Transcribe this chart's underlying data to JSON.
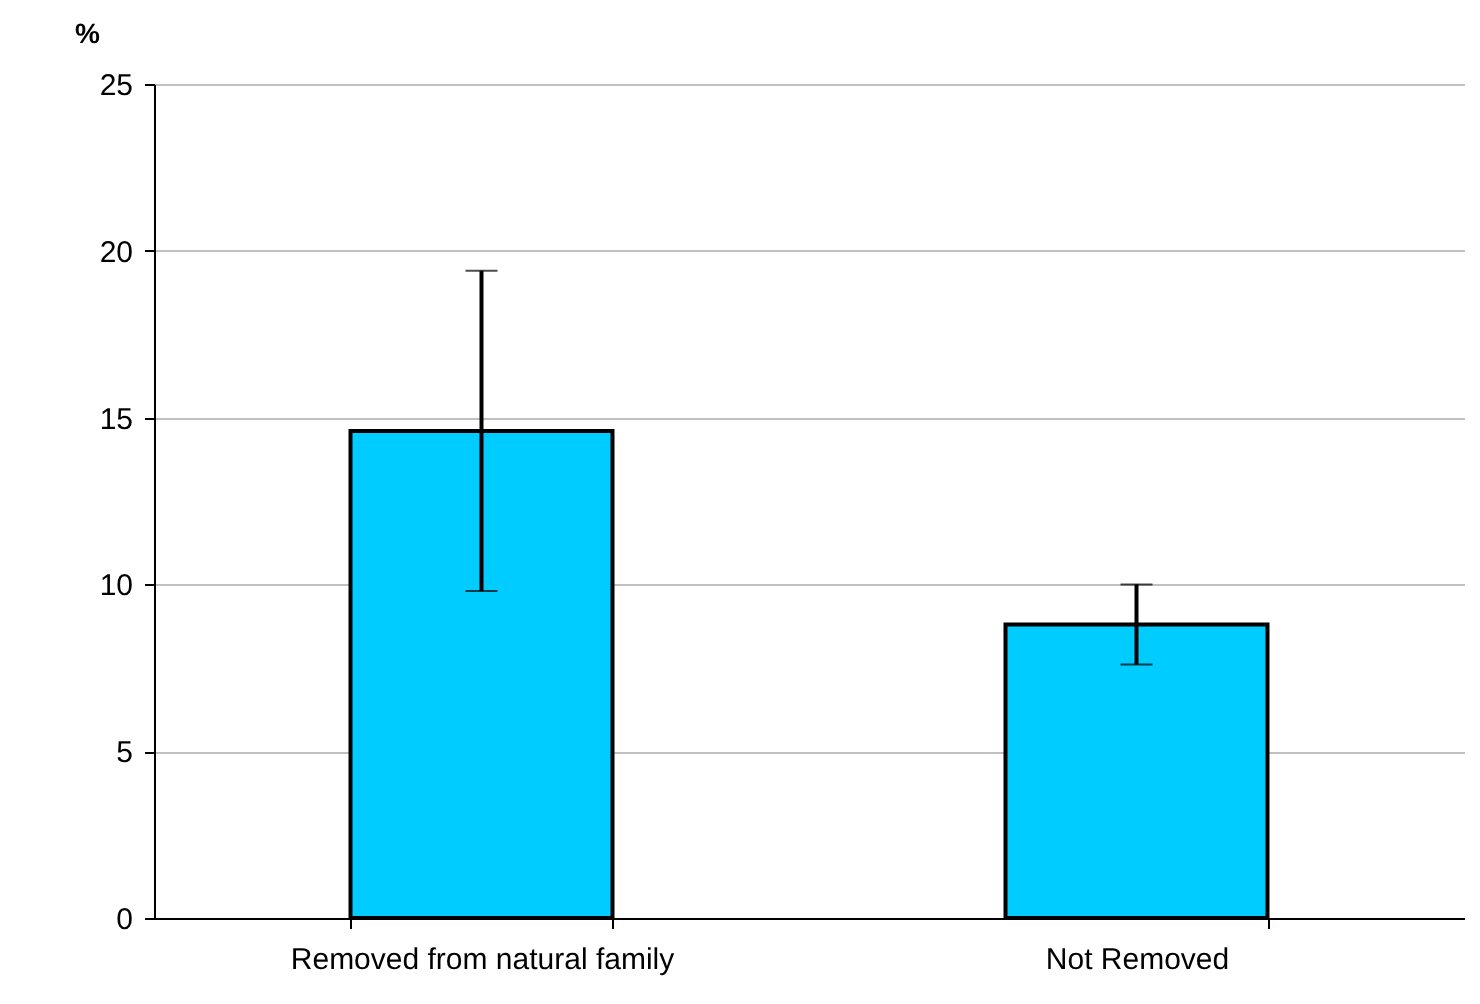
{
  "chart_data": {
    "type": "bar",
    "ylabel": "%",
    "categories": [
      "Removed from natural family",
      "Not Removed"
    ],
    "values": [
      14.6,
      8.8
    ],
    "errors": [
      4.8,
      1.2
    ],
    "color": "#00ccff",
    "ylim": [
      0,
      25
    ],
    "yticks": [
      0,
      5,
      10,
      15,
      20,
      25
    ],
    "grid": "y"
  }
}
